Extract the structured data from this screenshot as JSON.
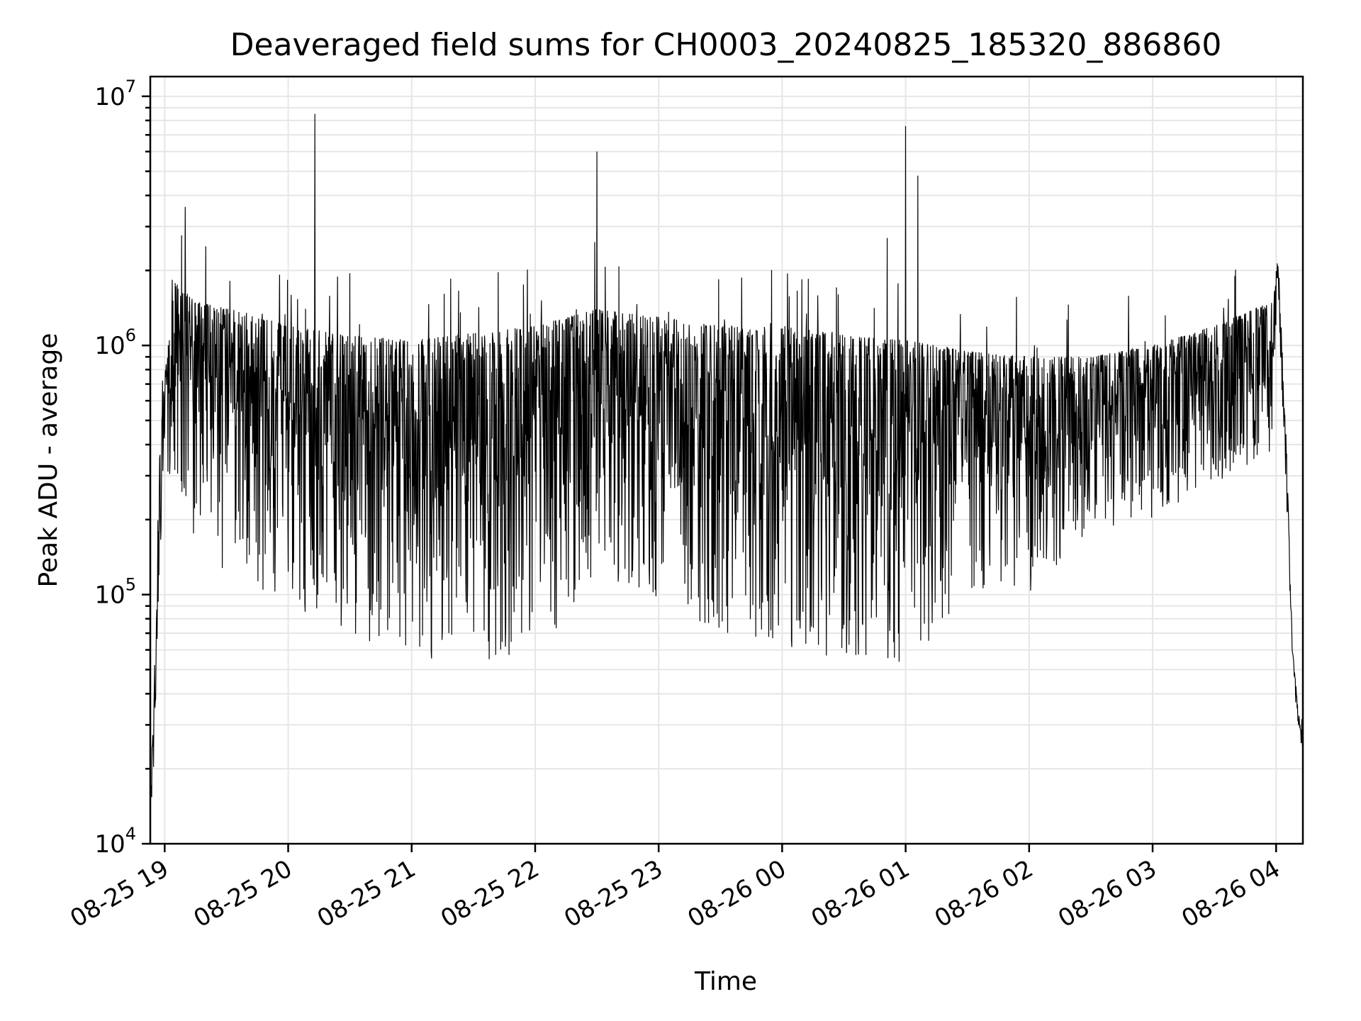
{
  "chart_data": {
    "type": "line",
    "title": "Deaveraged field sums for CH0003_20240825_185320_886860",
    "xlabel": "Time",
    "ylabel": "Peak ADU - average",
    "yscale": "log",
    "ylim": [
      10000,
      12000000
    ],
    "xlim": [
      "2024-08-25 18:53",
      "2024-08-26 04:13"
    ],
    "grid": true,
    "line_color": "#000000",
    "x_ticks": [
      {
        "value": "2024-08-25 19:00",
        "label": "08-25 19"
      },
      {
        "value": "2024-08-25 20:00",
        "label": "08-25 20"
      },
      {
        "value": "2024-08-25 21:00",
        "label": "08-25 21"
      },
      {
        "value": "2024-08-25 22:00",
        "label": "08-25 22"
      },
      {
        "value": "2024-08-25 23:00",
        "label": "08-25 23"
      },
      {
        "value": "2024-08-26 00:00",
        "label": "08-26 00"
      },
      {
        "value": "2024-08-26 01:00",
        "label": "08-26 01"
      },
      {
        "value": "2024-08-26 02:00",
        "label": "08-26 02"
      },
      {
        "value": "2024-08-26 03:00",
        "label": "08-26 03"
      },
      {
        "value": "2024-08-26 04:00",
        "label": "08-26 04"
      }
    ],
    "y_ticks": [
      {
        "value": 10000,
        "base": "10",
        "exp": "4"
      },
      {
        "value": 100000,
        "base": "10",
        "exp": "5"
      },
      {
        "value": 1000000,
        "base": "10",
        "exp": "6"
      },
      {
        "value": 10000000,
        "base": "10",
        "exp": "7"
      }
    ],
    "band": [
      {
        "x": "2024-08-25 18:53",
        "y_low": 13000,
        "y_high": 14000
      },
      {
        "x": "2024-08-25 18:55",
        "y_low": 20000,
        "y_high": 50000
      },
      {
        "x": "2024-08-25 18:57",
        "y_low": 80000,
        "y_high": 300000
      },
      {
        "x": "2024-08-25 19:00",
        "y_low": 250000,
        "y_high": 800000
      },
      {
        "x": "2024-08-25 19:05",
        "y_low": 300000,
        "y_high": 1800000
      },
      {
        "x": "2024-08-25 19:15",
        "y_low": 150000,
        "y_high": 1500000
      },
      {
        "x": "2024-08-25 19:40",
        "y_low": 110000,
        "y_high": 1350000
      },
      {
        "x": "2024-08-25 20:00",
        "y_low": 90000,
        "y_high": 1200000
      },
      {
        "x": "2024-08-25 20:30",
        "y_low": 70000,
        "y_high": 1100000
      },
      {
        "x": "2024-08-25 21:00",
        "y_low": 55000,
        "y_high": 1050000
      },
      {
        "x": "2024-08-25 21:40",
        "y_low": 50000,
        "y_high": 1150000
      },
      {
        "x": "2024-08-25 22:00",
        "y_low": 50000,
        "y_high": 1200000
      },
      {
        "x": "2024-08-25 22:30",
        "y_low": 120000,
        "y_high": 1400000
      },
      {
        "x": "2024-08-25 23:00",
        "y_low": 90000,
        "y_high": 1300000
      },
      {
        "x": "2024-08-25 23:30",
        "y_low": 70000,
        "y_high": 1200000
      },
      {
        "x": "2024-08-26 00:00",
        "y_low": 60000,
        "y_high": 1200000
      },
      {
        "x": "2024-08-26 00:30",
        "y_low": 55000,
        "y_high": 1100000
      },
      {
        "x": "2024-08-26 01:00",
        "y_low": 50000,
        "y_high": 1050000
      },
      {
        "x": "2024-08-26 01:30",
        "y_low": 100000,
        "y_high": 950000
      },
      {
        "x": "2024-08-26 02:00",
        "y_low": 100000,
        "y_high": 900000
      },
      {
        "x": "2024-08-26 02:30",
        "y_low": 180000,
        "y_high": 900000
      },
      {
        "x": "2024-08-26 03:00",
        "y_low": 200000,
        "y_high": 1000000
      },
      {
        "x": "2024-08-26 03:30",
        "y_low": 280000,
        "y_high": 1200000
      },
      {
        "x": "2024-08-26 03:58",
        "y_low": 350000,
        "y_high": 1500000
      },
      {
        "x": "2024-08-26 04:01",
        "y_low": 1500000,
        "y_high": 2300000
      },
      {
        "x": "2024-08-26 04:05",
        "y_low": 250000,
        "y_high": 400000
      },
      {
        "x": "2024-08-26 04:08",
        "y_low": 40000,
        "y_high": 60000
      },
      {
        "x": "2024-08-26 04:11",
        "y_low": 28000,
        "y_high": 33000
      },
      {
        "x": "2024-08-26 04:13",
        "y_low": 23000,
        "y_high": 25000
      }
    ],
    "spikes": [
      {
        "x": "2024-08-25 19:10",
        "y": 3600000
      },
      {
        "x": "2024-08-25 19:20",
        "y": 2500000
      },
      {
        "x": "2024-08-25 20:13",
        "y": 8500000
      },
      {
        "x": "2024-08-25 22:29",
        "y": 2600000
      },
      {
        "x": "2024-08-25 22:30",
        "y": 6000000
      },
      {
        "x": "2024-08-26 00:51",
        "y": 2700000
      },
      {
        "x": "2024-08-26 01:00",
        "y": 7600000
      },
      {
        "x": "2024-08-26 01:06",
        "y": 4800000
      },
      {
        "x": "2024-08-26 03:40",
        "y": 1900000
      }
    ]
  }
}
